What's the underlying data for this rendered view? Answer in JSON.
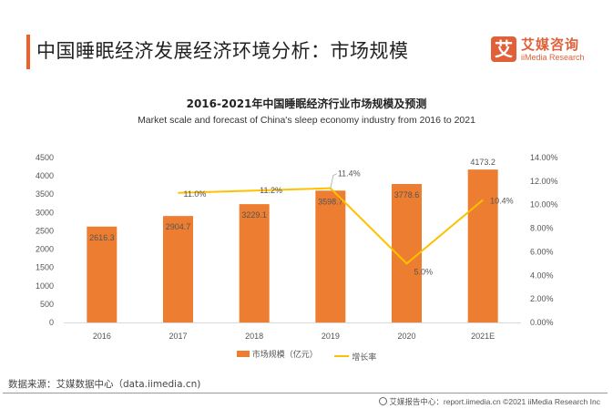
{
  "header": {
    "title": "中国睡眠经济发展经济环境分析：市场规模",
    "logo": {
      "glyph": "艾",
      "name_cn": "艾媒咨询",
      "name_en": "iiMedia Research"
    }
  },
  "chart_data": {
    "type": "bar",
    "title": "2016-2021年中国睡眠经济行业市场规模及预测",
    "subtitle": "Market scale and forecast of China's sleep economy industry from 2016 to 2021",
    "categories": [
      "2016",
      "2017",
      "2018",
      "2019",
      "2020",
      "2021E"
    ],
    "series": [
      {
        "name": "市场规模（亿元）",
        "type": "bar",
        "axis": "left",
        "color": "#ed7d31",
        "values": [
          2616.3,
          2904.7,
          3229.1,
          3598.7,
          3778.6,
          4173.2
        ],
        "labels": [
          "2616.3",
          "2904.7",
          "3229.1",
          "3598.7",
          "3778.6",
          "4173.2"
        ]
      },
      {
        "name": "增长率",
        "type": "line",
        "axis": "right",
        "color": "#ffc000",
        "values": [
          null,
          11.0,
          11.2,
          11.4,
          5.0,
          10.4
        ],
        "labels": [
          null,
          "11.0%",
          "11.2%",
          "11.4%",
          "5.0%",
          "10.4%"
        ]
      }
    ],
    "y_left": {
      "ylim": [
        0,
        4500
      ],
      "ticks": [
        "0",
        "500",
        "1000",
        "1500",
        "2000",
        "2500",
        "3000",
        "3500",
        "4000",
        "4500"
      ]
    },
    "y_right": {
      "ylim": [
        0,
        14
      ],
      "ticks": [
        "0.00%",
        "2.00%",
        "4.00%",
        "6.00%",
        "8.00%",
        "10.00%",
        "12.00%",
        "14.00%"
      ]
    },
    "xlabel": "",
    "ylabel": "",
    "grid": false,
    "legend": "bottom"
  },
  "footer": {
    "source": "数据来源：艾媒数据中心（data.iimedia.cn)",
    "credit": "艾媒报告中心：report.iimedia.cn  ©2021  iiMedia Research Inc"
  }
}
